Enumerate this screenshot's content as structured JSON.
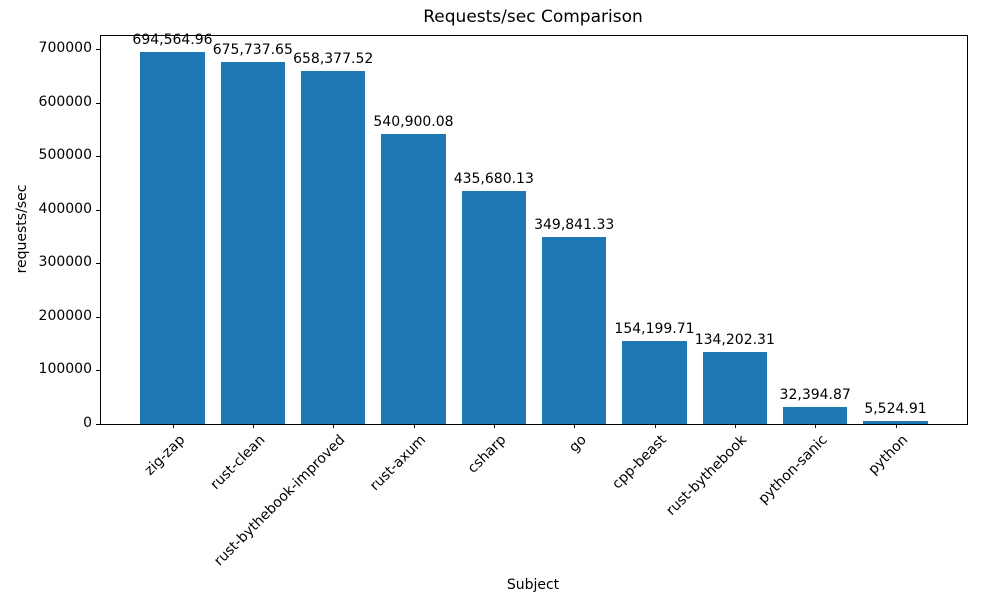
{
  "chart_data": {
    "type": "bar",
    "title": "Requests/sec Comparison",
    "xlabel": "Subject",
    "ylabel": "requests/sec",
    "categories": [
      "zig-zap",
      "rust-clean",
      "rust-bythebook-improved",
      "rust-axum",
      "csharp",
      "go",
      "cpp-beast",
      "rust-bythebook",
      "python-sanic",
      "python"
    ],
    "values": [
      694564.96,
      675737.65,
      658377.52,
      540900.08,
      435680.13,
      349841.33,
      154199.71,
      134202.31,
      32394.87,
      5524.91
    ],
    "value_labels": [
      "694,564.96",
      "675,737.65",
      "658,377.52",
      "540,900.08",
      "435,680.13",
      "349,841.33",
      "154,199.71",
      "134,202.31",
      "32,394.87",
      "5,524.91"
    ],
    "y_ticks": [
      0,
      100000,
      200000,
      300000,
      400000,
      500000,
      600000,
      700000
    ],
    "ylim": [
      0,
      724000
    ],
    "bar_width_fraction": 0.8,
    "bar_color": "#1f77b4",
    "axis_color": "#000000",
    "text_color": "#000000",
    "background_color": "#ffffff",
    "grid": false,
    "legend": null
  }
}
